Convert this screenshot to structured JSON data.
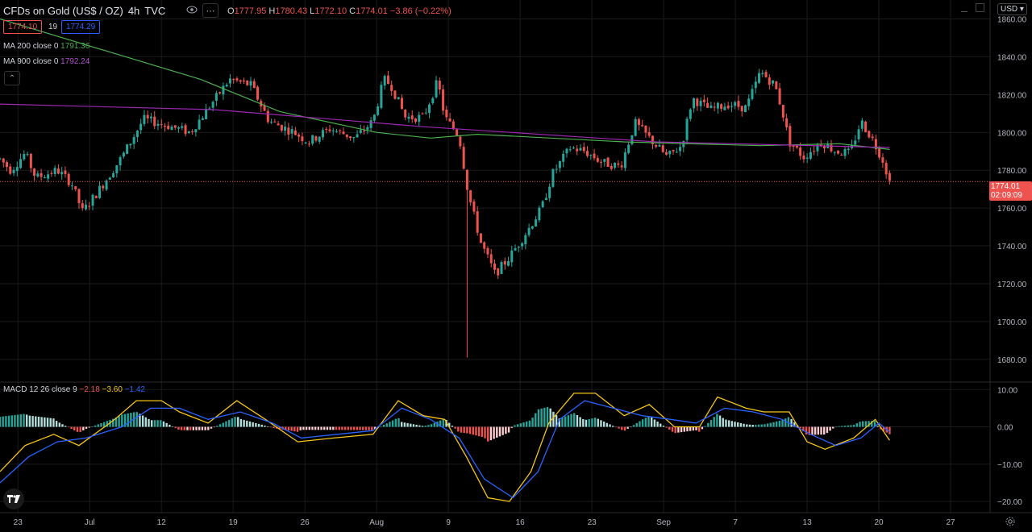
{
  "header": {
    "symbol": "CFDs on Gold (US$ / OZ)",
    "interval": "4h",
    "source": "TVC",
    "o_label": "O",
    "o_value": "1777.95",
    "h_label": "H",
    "h_value": "1780.43",
    "l_label": "L",
    "l_value": "1772.10",
    "c_label": "C",
    "c_value": "1774.01",
    "change": "−3.86 (−0.22%)",
    "bid": "1774.10",
    "spread": "19",
    "ask": "1774.29",
    "currency": "USD"
  },
  "indicators": {
    "ma200_label": "MA 200 close 0",
    "ma200_value": "1791.36",
    "ma900_label": "MA 900 close 0",
    "ma900_value": "1792.24",
    "macd_label": "MACD 12 26 close 9",
    "macd_hist": "−2.18",
    "macd_line": "−3.60",
    "macd_signal": "−1.42"
  },
  "colors": {
    "bg": "#000000",
    "up": "#26a69a",
    "down": "#ef5350",
    "ma200": "#4caf50",
    "ma900": "#9c27b0",
    "macd": "#f5c518",
    "signal": "#2962ff",
    "grid": "#1b1b1b"
  },
  "price_tag": {
    "value": "1774.01",
    "countdown": "02:09:09"
  },
  "chart_data": {
    "type": "candlestick",
    "y_axis": {
      "ticks": [
        "1860.00",
        "1840.00",
        "1820.00",
        "1800.00",
        "1780.00",
        "1760.00",
        "1740.00",
        "1720.00",
        "1700.00",
        "1680.00"
      ],
      "range": [
        1668,
        1870
      ]
    },
    "x_axis": {
      "labels": [
        "23",
        "Jul",
        "12",
        "19",
        "26",
        "Aug",
        "9",
        "16",
        "23",
        "Sep",
        "7",
        "13",
        "20",
        "27"
      ]
    },
    "path_points": [
      {
        "t": 0,
        "p": 1786
      },
      {
        "t": 0.3,
        "p": 1780
      },
      {
        "t": 0.7,
        "p": 1789
      },
      {
        "t": 1.0,
        "p": 1776
      },
      {
        "t": 1.6,
        "p": 1780
      },
      {
        "t": 2.0,
        "p": 1773
      },
      {
        "t": 2.3,
        "p": 1758
      },
      {
        "t": 2.7,
        "p": 1768
      },
      {
        "t": 3.4,
        "p": 1787
      },
      {
        "t": 4.0,
        "p": 1807
      },
      {
        "t": 4.6,
        "p": 1804
      },
      {
        "t": 5.3,
        "p": 1800
      },
      {
        "t": 6.4,
        "p": 1828
      },
      {
        "t": 7.0,
        "p": 1825
      },
      {
        "t": 7.5,
        "p": 1806
      },
      {
        "t": 8.2,
        "p": 1800
      },
      {
        "t": 8.6,
        "p": 1795
      },
      {
        "t": 9.2,
        "p": 1802
      },
      {
        "t": 9.9,
        "p": 1797
      },
      {
        "t": 10.4,
        "p": 1806
      },
      {
        "t": 10.7,
        "p": 1828
      },
      {
        "t": 10.9,
        "p": 1825
      },
      {
        "t": 11.3,
        "p": 1808
      },
      {
        "t": 11.8,
        "p": 1808
      },
      {
        "t": 12.2,
        "p": 1827
      },
      {
        "t": 12.4,
        "p": 1808
      },
      {
        "t": 12.8,
        "p": 1798
      },
      {
        "t": 13.05,
        "p": 1768
      },
      {
        "t": 13.4,
        "p": 1742
      },
      {
        "t": 13.8,
        "p": 1725
      },
      {
        "t": 14.2,
        "p": 1734
      },
      {
        "t": 14.7,
        "p": 1748
      },
      {
        "t": 15.1,
        "p": 1760
      },
      {
        "t": 15.4,
        "p": 1778
      },
      {
        "t": 15.9,
        "p": 1792
      },
      {
        "t": 16.3,
        "p": 1790
      },
      {
        "t": 16.8,
        "p": 1784
      },
      {
        "t": 17.3,
        "p": 1782
      },
      {
        "t": 17.7,
        "p": 1805
      },
      {
        "t": 18.1,
        "p": 1797
      },
      {
        "t": 18.6,
        "p": 1787
      },
      {
        "t": 19.0,
        "p": 1793
      },
      {
        "t": 19.3,
        "p": 1818
      },
      {
        "t": 19.8,
        "p": 1812
      },
      {
        "t": 20.3,
        "p": 1815
      },
      {
        "t": 20.8,
        "p": 1813
      },
      {
        "t": 21.2,
        "p": 1832
      },
      {
        "t": 21.6,
        "p": 1825
      },
      {
        "t": 21.8,
        "p": 1812
      },
      {
        "t": 22.0,
        "p": 1795
      },
      {
        "t": 22.4,
        "p": 1787
      },
      {
        "t": 22.9,
        "p": 1795
      },
      {
        "t": 23.3,
        "p": 1790
      },
      {
        "t": 23.7,
        "p": 1789
      },
      {
        "t": 24.0,
        "p": 1806
      },
      {
        "t": 24.3,
        "p": 1797
      },
      {
        "t": 24.6,
        "p": 1786
      },
      {
        "t": 24.8,
        "p": 1774
      }
    ],
    "ma200": [
      {
        "t": 0,
        "p": 1860
      },
      {
        "t": 5.6,
        "p": 1828
      },
      {
        "t": 7.8,
        "p": 1811
      },
      {
        "t": 10.5,
        "p": 1800
      },
      {
        "t": 12.0,
        "p": 1797
      },
      {
        "t": 13.3,
        "p": 1799
      },
      {
        "t": 17.4,
        "p": 1795
      },
      {
        "t": 21.2,
        "p": 1793
      },
      {
        "t": 23.4,
        "p": 1794
      },
      {
        "t": 24.8,
        "p": 1791
      }
    ],
    "ma900": [
      {
        "t": 0,
        "p": 1815
      },
      {
        "t": 6.0,
        "p": 1812
      },
      {
        "t": 11.8,
        "p": 1803
      },
      {
        "t": 18.3,
        "p": 1795
      },
      {
        "t": 24.8,
        "p": 1792
      }
    ],
    "macd_axis": {
      "ticks": [
        "10.00",
        "0.00",
        "−10.00",
        "−20.00"
      ],
      "range": [
        -23,
        12
      ]
    },
    "macd_points": [
      {
        "t": 0,
        "v": -12
      },
      {
        "t": 0.7,
        "v": -5
      },
      {
        "t": 1.5,
        "v": -2
      },
      {
        "t": 2.2,
        "v": -5
      },
      {
        "t": 3.2,
        "v": 2
      },
      {
        "t": 3.8,
        "v": 7
      },
      {
        "t": 4.5,
        "v": 7
      },
      {
        "t": 5.0,
        "v": 4
      },
      {
        "t": 5.8,
        "v": 1
      },
      {
        "t": 6.6,
        "v": 7
      },
      {
        "t": 7.4,
        "v": 2
      },
      {
        "t": 8.3,
        "v": -4
      },
      {
        "t": 9.3,
        "v": -3
      },
      {
        "t": 10.4,
        "v": -2
      },
      {
        "t": 11.1,
        "v": 7
      },
      {
        "t": 11.8,
        "v": 3
      },
      {
        "t": 12.4,
        "v": 2
      },
      {
        "t": 13.0,
        "v": -8
      },
      {
        "t": 13.6,
        "v": -19
      },
      {
        "t": 14.2,
        "v": -20
      },
      {
        "t": 14.8,
        "v": -12
      },
      {
        "t": 15.3,
        "v": 1
      },
      {
        "t": 16.0,
        "v": 9
      },
      {
        "t": 16.6,
        "v": 9
      },
      {
        "t": 17.4,
        "v": 3
      },
      {
        "t": 18.1,
        "v": 6
      },
      {
        "t": 18.8,
        "v": 0
      },
      {
        "t": 19.5,
        "v": 0
      },
      {
        "t": 20.0,
        "v": 8
      },
      {
        "t": 20.8,
        "v": 5
      },
      {
        "t": 21.3,
        "v": 4
      },
      {
        "t": 22.0,
        "v": 4
      },
      {
        "t": 22.5,
        "v": -4
      },
      {
        "t": 23.0,
        "v": -6
      },
      {
        "t": 23.8,
        "v": -3
      },
      {
        "t": 24.4,
        "v": 2
      },
      {
        "t": 24.8,
        "v": -3.6
      }
    ],
    "signal_points": [
      {
        "t": 0,
        "v": -15
      },
      {
        "t": 0.8,
        "v": -8
      },
      {
        "t": 1.6,
        "v": -4
      },
      {
        "t": 2.4,
        "v": -3
      },
      {
        "t": 3.4,
        "v": 0
      },
      {
        "t": 4.2,
        "v": 5
      },
      {
        "t": 5.0,
        "v": 5
      },
      {
        "t": 5.8,
        "v": 2
      },
      {
        "t": 6.7,
        "v": 4
      },
      {
        "t": 7.6,
        "v": 1
      },
      {
        "t": 8.4,
        "v": -3
      },
      {
        "t": 9.4,
        "v": -2
      },
      {
        "t": 10.4,
        "v": -1
      },
      {
        "t": 11.2,
        "v": 5
      },
      {
        "t": 12.0,
        "v": 2
      },
      {
        "t": 12.8,
        "v": -3
      },
      {
        "t": 13.5,
        "v": -14
      },
      {
        "t": 14.3,
        "v": -19
      },
      {
        "t": 15.0,
        "v": -12
      },
      {
        "t": 15.6,
        "v": 2
      },
      {
        "t": 16.3,
        "v": 7
      },
      {
        "t": 17.1,
        "v": 5
      },
      {
        "t": 17.9,
        "v": 3
      },
      {
        "t": 18.7,
        "v": 2
      },
      {
        "t": 19.4,
        "v": 1
      },
      {
        "t": 20.2,
        "v": 5
      },
      {
        "t": 21.0,
        "v": 4
      },
      {
        "t": 21.8,
        "v": 2
      },
      {
        "t": 22.6,
        "v": -2
      },
      {
        "t": 23.3,
        "v": -5
      },
      {
        "t": 24.0,
        "v": -3
      },
      {
        "t": 24.5,
        "v": 1
      },
      {
        "t": 24.8,
        "v": -1.4
      }
    ]
  }
}
